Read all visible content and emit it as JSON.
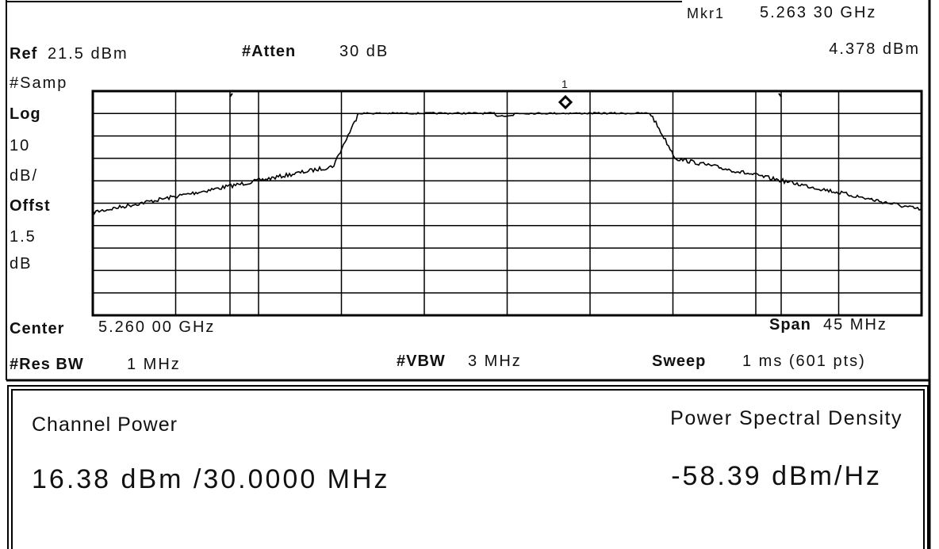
{
  "marker": {
    "label": "Mkr1",
    "frequency": "5.263 30 GHz",
    "amplitude": "4.378 dBm",
    "number": "1"
  },
  "header": {
    "ref_label": "Ref",
    "ref_value": "21.5 dBm",
    "atten_label": "#Atten",
    "atten_value": "30 dB"
  },
  "scale": [
    "#Samp",
    "Log",
    "10",
    "dB/",
    "Offst",
    "1.5",
    "dB"
  ],
  "footer": {
    "center_label": "Center",
    "center_value": "5.260 00 GHz",
    "span_label": "Span",
    "span_value": "45 MHz",
    "rbw_label": "#Res BW",
    "rbw_value": "1 MHz",
    "vbw_label": "#VBW",
    "vbw_value": "3 MHz",
    "sweep_label": "Sweep",
    "sweep_value": "1 ms (601 pts)"
  },
  "results": {
    "channel_power_label": "Channel Power",
    "channel_power_value": "16.38 dBm /30.0000 MHz",
    "psd_label": "Power Spectral Density",
    "psd_value": "-58.39 dBm/Hz"
  }
}
